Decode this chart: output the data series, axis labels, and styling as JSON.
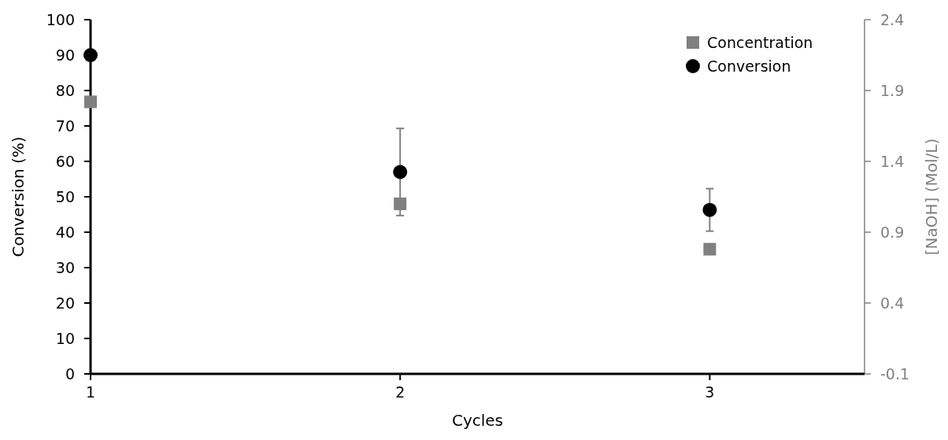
{
  "chart_data": {
    "type": "scatter",
    "xlabel": "Cycles",
    "ylabel": "Conversion (%)",
    "y2label": "[NaOH] (Mol/L)",
    "x": [
      1,
      2,
      3
    ],
    "xlim": [
      1,
      3.5
    ],
    "xticks": [
      1,
      2,
      3
    ],
    "ylim": [
      0,
      100
    ],
    "yticks": [
      0,
      10,
      20,
      30,
      40,
      50,
      60,
      70,
      80,
      90,
      100
    ],
    "y2lim": [
      -0.1,
      2.4
    ],
    "y2ticks": [
      -0.1,
      0.4,
      0.9,
      1.4,
      1.9,
      2.4
    ],
    "series": [
      {
        "name": "Concentration",
        "color": "#808080",
        "marker": "square",
        "axis": "y2",
        "values": [
          1.82,
          1.1,
          0.78
        ]
      },
      {
        "name": "Conversion",
        "color": "#000000",
        "marker": "circle",
        "values": [
          90,
          57,
          46.3
        ],
        "errors": [
          null,
          12.3,
          6
        ]
      }
    ],
    "legend": "top right",
    "grid": false
  }
}
